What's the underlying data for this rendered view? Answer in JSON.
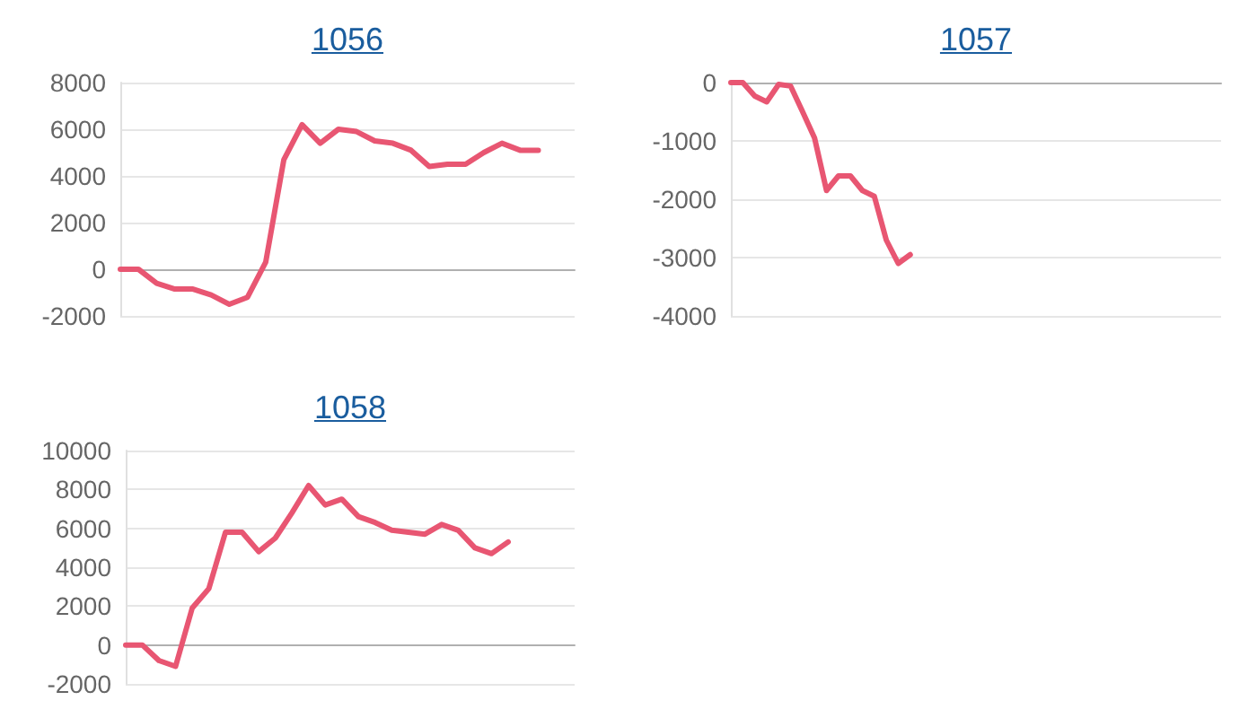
{
  "chart_data": [
    {
      "type": "line",
      "title": "1056",
      "categories": [
        null,
        null,
        null,
        null,
        null,
        null,
        null,
        null,
        null,
        null,
        null,
        null,
        null,
        null,
        null,
        null,
        null,
        null,
        null,
        null,
        null,
        null,
        null,
        null,
        null,
        null
      ],
      "series": [
        {
          "color": "#e85672",
          "values": [
            0,
            0,
            -600,
            -850,
            -850,
            -1100,
            -1500,
            -1200,
            300,
            4700,
            6200,
            5400,
            6000,
            5900,
            5500,
            5400,
            5100,
            4400,
            4500,
            4500,
            5000,
            5400,
            5100,
            5100,
            null,
            null
          ]
        }
      ],
      "ylim": [
        -2000,
        8000
      ],
      "yticks": [
        -2000,
        0,
        2000,
        4000,
        6000,
        8000
      ],
      "grid": "y",
      "tick_labels": "y",
      "marker": "none",
      "line_style": "solid"
    },
    {
      "type": "line",
      "title": "1057",
      "categories": [
        null,
        null,
        null,
        null,
        null,
        null,
        null,
        null,
        null,
        null,
        null,
        null,
        null,
        null,
        null,
        null,
        null,
        null,
        null,
        null,
        null,
        null,
        null,
        null,
        null,
        null,
        null,
        null,
        null,
        null,
        null,
        null,
        null,
        null,
        null,
        null,
        null,
        null,
        null,
        null,
        null,
        null
      ],
      "series": [
        {
          "color": "#e85672",
          "values": [
            0,
            0,
            -230,
            -330,
            -30,
            -60,
            -500,
            -950,
            -1850,
            -1600,
            -1600,
            -1850,
            -1950,
            -2700,
            -3100,
            -2950,
            null,
            null,
            null,
            null,
            null,
            null,
            null,
            null,
            null,
            null,
            null,
            null,
            null,
            null,
            null,
            null,
            null,
            null,
            null,
            null,
            null,
            null,
            null,
            null,
            null,
            null
          ]
        }
      ],
      "ylim": [
        -4000,
        0
      ],
      "yticks": [
        -4000,
        -3000,
        -2000,
        -1000,
        0
      ],
      "grid": "y",
      "tick_labels": "y",
      "marker": "none",
      "line_style": "solid"
    },
    {
      "type": "line",
      "title": "1058",
      "categories": [
        null,
        null,
        null,
        null,
        null,
        null,
        null,
        null,
        null,
        null,
        null,
        null,
        null,
        null,
        null,
        null,
        null,
        null,
        null,
        null,
        null,
        null,
        null,
        null,
        null,
        null,
        null,
        null
      ],
      "series": [
        {
          "color": "#e85672",
          "values": [
            0,
            0,
            -800,
            -1100,
            1900,
            2900,
            5800,
            5800,
            4800,
            5500,
            6800,
            8200,
            7200,
            7500,
            6600,
            6300,
            5900,
            5800,
            5700,
            6200,
            5900,
            5000,
            4700,
            5300,
            null,
            null,
            null,
            null
          ]
        }
      ],
      "ylim": [
        -2000,
        10000
      ],
      "yticks": [
        -2000,
        0,
        2000,
        4000,
        6000,
        8000,
        10000
      ],
      "grid": "y",
      "tick_labels": "y",
      "marker": "none",
      "line_style": "solid"
    }
  ]
}
